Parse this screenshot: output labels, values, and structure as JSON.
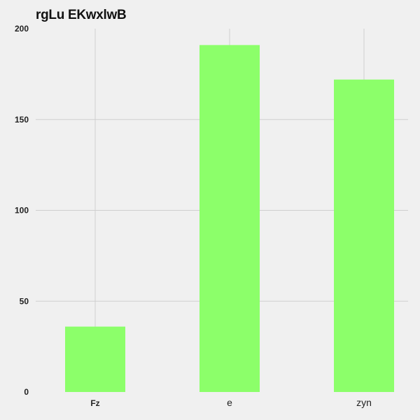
{
  "chart_data": {
    "type": "bar",
    "title": "rgLu EKwxlwB",
    "xlabel": "",
    "ylabel": "",
    "categories": [
      "Fz",
      "e",
      "zyn"
    ],
    "values": [
      36,
      191,
      172
    ],
    "ylim": [
      0,
      200
    ],
    "yticks": [
      0,
      50,
      100,
      150,
      200
    ],
    "grid": true,
    "legend": "none",
    "colors": {
      "bar": "#8cff6a",
      "grid": "#cfcfcf",
      "background": "#f0f0f0"
    }
  }
}
